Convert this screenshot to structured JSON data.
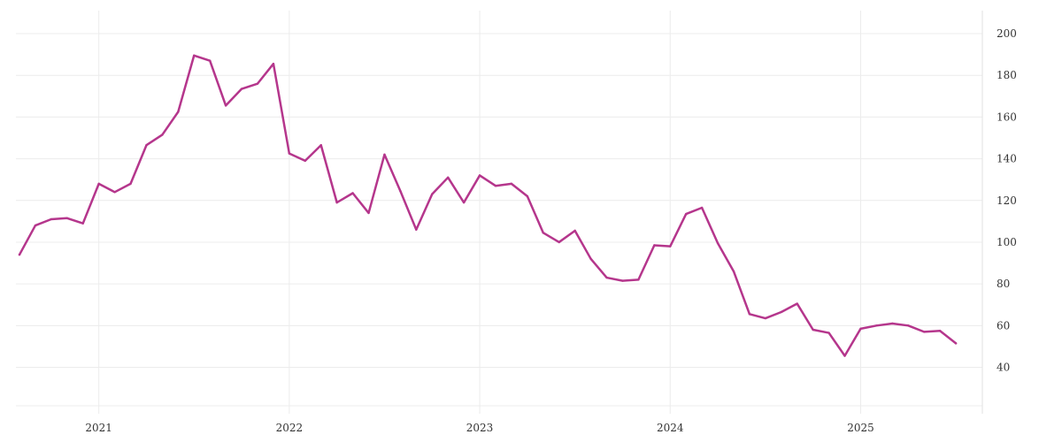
{
  "chart_data": {
    "type": "line",
    "title": "",
    "xlabel": "",
    "ylabel": "",
    "grid": true,
    "y_axis_side": "right",
    "xlim": [
      "2020-08",
      "2025-08"
    ],
    "ylim": [
      20,
      210
    ],
    "y_ticks": [
      40,
      60,
      80,
      100,
      120,
      140,
      160,
      180,
      200
    ],
    "x_ticks": [
      {
        "date": "2021-01",
        "label": "2021"
      },
      {
        "date": "2022-01",
        "label": "2022"
      },
      {
        "date": "2023-01",
        "label": "2023"
      },
      {
        "date": "2024-01",
        "label": "2024"
      },
      {
        "date": "2025-01",
        "label": "2025"
      }
    ],
    "series": [
      {
        "color": "#b5368c",
        "points": [
          [
            "2020-08",
            94
          ],
          [
            "2020-09",
            108
          ],
          [
            "2020-10",
            111
          ],
          [
            "2020-11",
            111.5
          ],
          [
            "2020-12",
            109
          ],
          [
            "2021-01",
            128
          ],
          [
            "2021-02",
            124
          ],
          [
            "2021-03",
            128
          ],
          [
            "2021-04",
            146.5
          ],
          [
            "2021-05",
            151.5
          ],
          [
            "2021-06",
            162.5
          ],
          [
            "2021-07",
            189.5
          ],
          [
            "2021-08",
            187
          ],
          [
            "2021-09",
            165.5
          ],
          [
            "2021-10",
            173.5
          ],
          [
            "2021-11",
            176
          ],
          [
            "2021-12",
            185.5
          ],
          [
            "2022-01",
            142.5
          ],
          [
            "2022-02",
            139
          ],
          [
            "2022-03",
            146.5
          ],
          [
            "2022-04",
            119
          ],
          [
            "2022-05",
            123.5
          ],
          [
            "2022-06",
            114
          ],
          [
            "2022-07",
            142
          ],
          [
            "2022-08",
            124.5
          ],
          [
            "2022-09",
            106
          ],
          [
            "2022-10",
            123
          ],
          [
            "2022-11",
            131
          ],
          [
            "2022-12",
            119
          ],
          [
            "2023-01",
            132
          ],
          [
            "2023-02",
            127
          ],
          [
            "2023-03",
            128
          ],
          [
            "2023-04",
            122
          ],
          [
            "2023-05",
            104.5
          ],
          [
            "2023-06",
            100
          ],
          [
            "2023-07",
            105.5
          ],
          [
            "2023-08",
            92
          ],
          [
            "2023-09",
            83
          ],
          [
            "2023-10",
            81.5
          ],
          [
            "2023-11",
            82
          ],
          [
            "2023-12",
            98.5
          ],
          [
            "2024-01",
            98
          ],
          [
            "2024-02",
            113.5
          ],
          [
            "2024-03",
            116.5
          ],
          [
            "2024-04",
            99.5
          ],
          [
            "2024-05",
            86
          ],
          [
            "2024-06",
            65.5
          ],
          [
            "2024-07",
            63.5
          ],
          [
            "2024-08",
            66.5
          ],
          [
            "2024-09",
            70.5
          ],
          [
            "2024-10",
            58
          ],
          [
            "2024-11",
            56.5
          ],
          [
            "2024-12",
            45.5
          ],
          [
            "2025-01",
            58.5
          ],
          [
            "2025-02",
            60
          ],
          [
            "2025-03",
            61
          ],
          [
            "2025-04",
            60
          ],
          [
            "2025-05",
            57
          ],
          [
            "2025-06",
            57.5
          ],
          [
            "2025-07",
            51.5
          ]
        ]
      }
    ]
  }
}
